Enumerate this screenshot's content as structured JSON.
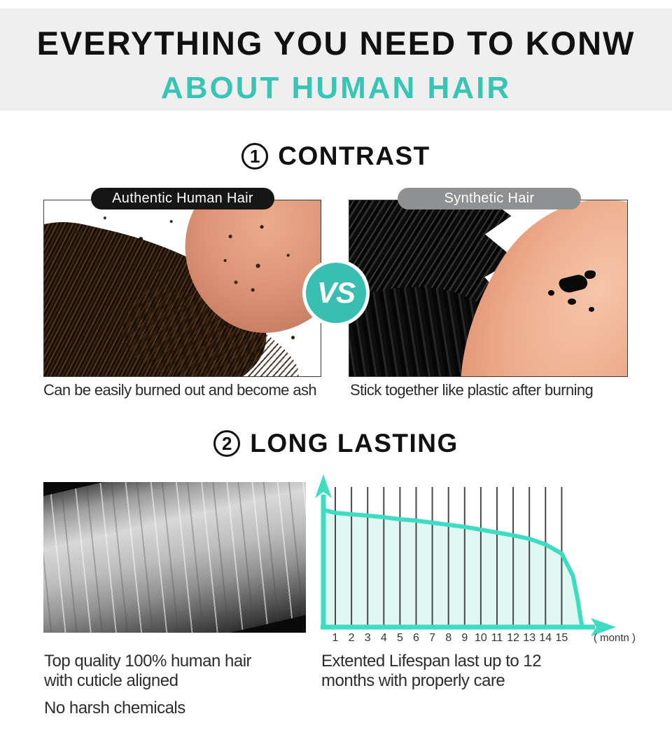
{
  "theme": {
    "accent": "#38c5b6",
    "header_bg": "#efefef",
    "vs_bg": "#38bfb1",
    "pill_dark": "#161616",
    "pill_gray": "#8f9092"
  },
  "header": {
    "title_line1": "EVERYTHING YOU NEED TO KONW",
    "title_line2": "ABOUT HUMAN HAIR"
  },
  "contrast": {
    "number": "1",
    "heading": "CONTRAST",
    "left": {
      "label": "Authentic Human Hair",
      "caption": "Can be easily burned out and become ash"
    },
    "right": {
      "label": "Synthetic Hair",
      "caption": "Stick together like plastic after burning"
    },
    "vs_label": "VS"
  },
  "longlasting": {
    "number": "2",
    "heading": "LONG LASTING",
    "left_text": {
      "line1": "Top quality 100% human hair",
      "line2": "with cuticle aligned",
      "line3": "No harsh chemicals"
    },
    "right_text": {
      "line1": "Extented Lifespan last up to 12",
      "line2": "months with properly care"
    }
  },
  "chart_data": {
    "type": "area",
    "title": "",
    "xlabel": "( montn )",
    "ylabel": "",
    "x_ticks": [
      "1",
      "2",
      "3",
      "4",
      "5",
      "6",
      "7",
      "8",
      "9",
      "10",
      "11",
      "12",
      "13",
      "14",
      "15"
    ],
    "x_range_months": [
      0,
      16.3
    ],
    "y_axis_labeled": false,
    "grid": "vertical-month-lines",
    "legend": "none",
    "series": [
      {
        "name": "lifespan-quality",
        "points_month_pct": [
          [
            0.3,
            77.7
          ],
          [
            1,
            75.8
          ],
          [
            2,
            74.9
          ],
          [
            3,
            74.0
          ],
          [
            4,
            73.0
          ],
          [
            5,
            71.6
          ],
          [
            6,
            70.7
          ],
          [
            7,
            69.3
          ],
          [
            8,
            67.9
          ],
          [
            9,
            66.5
          ],
          [
            10,
            64.7
          ],
          [
            11,
            62.8
          ],
          [
            12,
            60.9
          ],
          [
            13,
            58.6
          ],
          [
            14,
            54.9
          ],
          [
            15,
            48.8
          ],
          [
            15.7,
            34.0
          ],
          [
            16.0,
            17.7
          ],
          [
            16.2,
            3.7
          ],
          [
            16.3,
            0
          ]
        ]
      }
    ],
    "annotation": "Lifespan quality stays high through month 15 then drops sharply",
    "colors": {
      "line": "#3edcc3",
      "fill": "#e0f7f2",
      "axis": "#3edcc3",
      "gridline": "#4a4a4a",
      "tick_text": "#333333"
    }
  }
}
